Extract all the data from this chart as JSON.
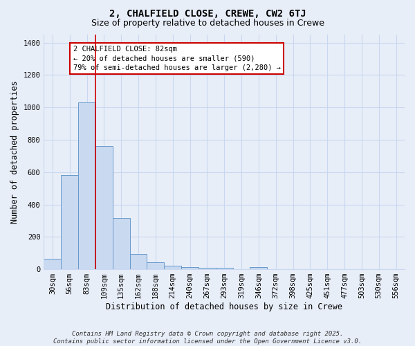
{
  "title1": "2, CHALFIELD CLOSE, CREWE, CW2 6TJ",
  "title2": "Size of property relative to detached houses in Crewe",
  "xlabel": "Distribution of detached houses by size in Crewe",
  "ylabel": "Number of detached properties",
  "bar_labels": [
    "30sqm",
    "56sqm",
    "83sqm",
    "109sqm",
    "135sqm",
    "162sqm",
    "188sqm",
    "214sqm",
    "240sqm",
    "267sqm",
    "293sqm",
    "319sqm",
    "346sqm",
    "372sqm",
    "398sqm",
    "425sqm",
    "451sqm",
    "477sqm",
    "503sqm",
    "530sqm",
    "556sqm"
  ],
  "bar_values": [
    65,
    580,
    1030,
    760,
    315,
    95,
    45,
    22,
    15,
    8,
    10,
    0,
    12,
    0,
    0,
    0,
    0,
    0,
    0,
    0,
    0
  ],
  "bar_color": "#c9d9f0",
  "bar_edge_color": "#6699cc",
  "vline_x_index": 2,
  "vline_color": "#cc0000",
  "annotation_text": "2 CHALFIELD CLOSE: 82sqm\n← 20% of detached houses are smaller (590)\n79% of semi-detached houses are larger (2,280) →",
  "annotation_box_color": "#ffffff",
  "annotation_box_edge": "#cc0000",
  "ylim": [
    0,
    1450
  ],
  "yticks": [
    0,
    200,
    400,
    600,
    800,
    1000,
    1200,
    1400
  ],
  "grid_color": "#c8d8f0",
  "bg_color": "#e8eef8",
  "footer_text": "Contains HM Land Registry data © Crown copyright and database right 2025.\nContains public sector information licensed under the Open Government Licence v3.0.",
  "title1_fontsize": 10,
  "title2_fontsize": 9,
  "xlabel_fontsize": 8.5,
  "ylabel_fontsize": 8.5,
  "tick_fontsize": 7.5,
  "annotation_fontsize": 7.5,
  "footer_fontsize": 6.5
}
